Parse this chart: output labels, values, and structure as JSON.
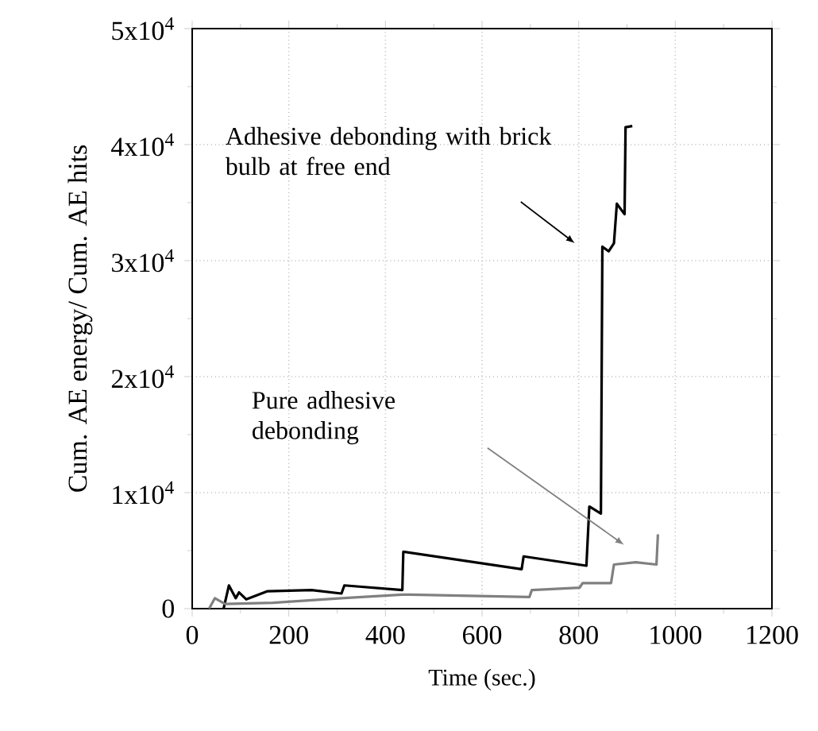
{
  "chart_data": {
    "type": "line",
    "xlabel": "Time (sec.)",
    "ylabel": "Cum. AE energy/ Cum. AE hits",
    "xlim": [
      0,
      1200
    ],
    "xticks": [
      0,
      200,
      400,
      600,
      800,
      1000,
      1200
    ],
    "ylim": [
      0,
      50000
    ],
    "yticks": [
      0,
      {
        "value": 10000,
        "label": "1x10$^{4}$"
      },
      {
        "value": 20000,
        "label": "2x10$^{4}$"
      },
      {
        "value": 30000,
        "label": "3x10$^{4}$"
      },
      {
        "value": 40000,
        "label": "4x10$^{4}$"
      },
      {
        "value": 50000,
        "label": "5x10$^{4}$"
      }
    ],
    "grid": true,
    "series": [
      {
        "color": "#000000",
        "x": [
          65,
          76,
          90,
          97,
          112,
          156,
          247,
          309,
          315,
          435,
          437,
          682,
          686,
          816,
          822,
          846,
          849,
          862,
          873,
          879,
          895,
          897,
          911
        ],
        "values": [
          0,
          2000,
          900,
          1400,
          800,
          1500,
          1600,
          1300,
          2000,
          1600,
          4900,
          3400,
          4500,
          3700,
          8800,
          8200,
          31200,
          30800,
          31500,
          34900,
          34000,
          41500,
          41600
        ]
      },
      {
        "color": "#808080",
        "x": [
          35,
          47,
          68,
          167,
          309,
          435,
          451,
          698,
          703,
          802,
          808,
          867,
          873,
          918,
          961,
          964
        ],
        "values": [
          0,
          900,
          400,
          500,
          900,
          1200,
          1200,
          1000,
          1600,
          1800,
          2200,
          2200,
          3800,
          4000,
          3800,
          6400
        ]
      }
    ],
    "annotations": [
      "Adhesive debonding with brick bulb at free end",
      "Pure adhesive debonding"
    ]
  }
}
